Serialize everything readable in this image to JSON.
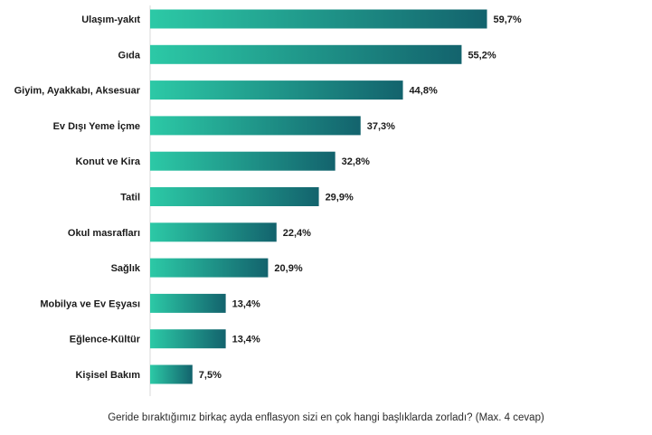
{
  "caption": "Geride bıraktığımız birkaç ayda enflasyon sizi en çok hangi başlıklarda zorladı? (Max. 4 cevap)",
  "colors": {
    "bar_start": "#2cc9a6",
    "bar_end": "#13636d",
    "text": "#1a1a1a"
  },
  "chart_data": {
    "type": "bar",
    "orientation": "horizontal",
    "title": "",
    "categories": [
      "Ulaşım-yakıt",
      "Gıda",
      "Giyim, Ayakkabı, Aksesuar",
      "Ev Dışı Yeme İçme",
      "Konut ve Kira",
      "Tatil",
      "Okul masrafları",
      "Sağlık",
      "Mobilya ve Ev Eşyası",
      "Eğlence-Kültür",
      "Kişisel Bakım"
    ],
    "values": [
      59.7,
      55.2,
      44.8,
      37.3,
      32.8,
      29.9,
      22.4,
      20.9,
      13.4,
      13.4,
      7.5
    ],
    "value_labels": [
      "59,7%",
      "55,2%",
      "44,8%",
      "37,3%",
      "32,8%",
      "29,9%",
      "22,4%",
      "20,9%",
      "13,4%",
      "13,4%",
      "7,5%"
    ],
    "xlim": [
      0,
      100
    ],
    "grid": false,
    "legend": "none"
  }
}
